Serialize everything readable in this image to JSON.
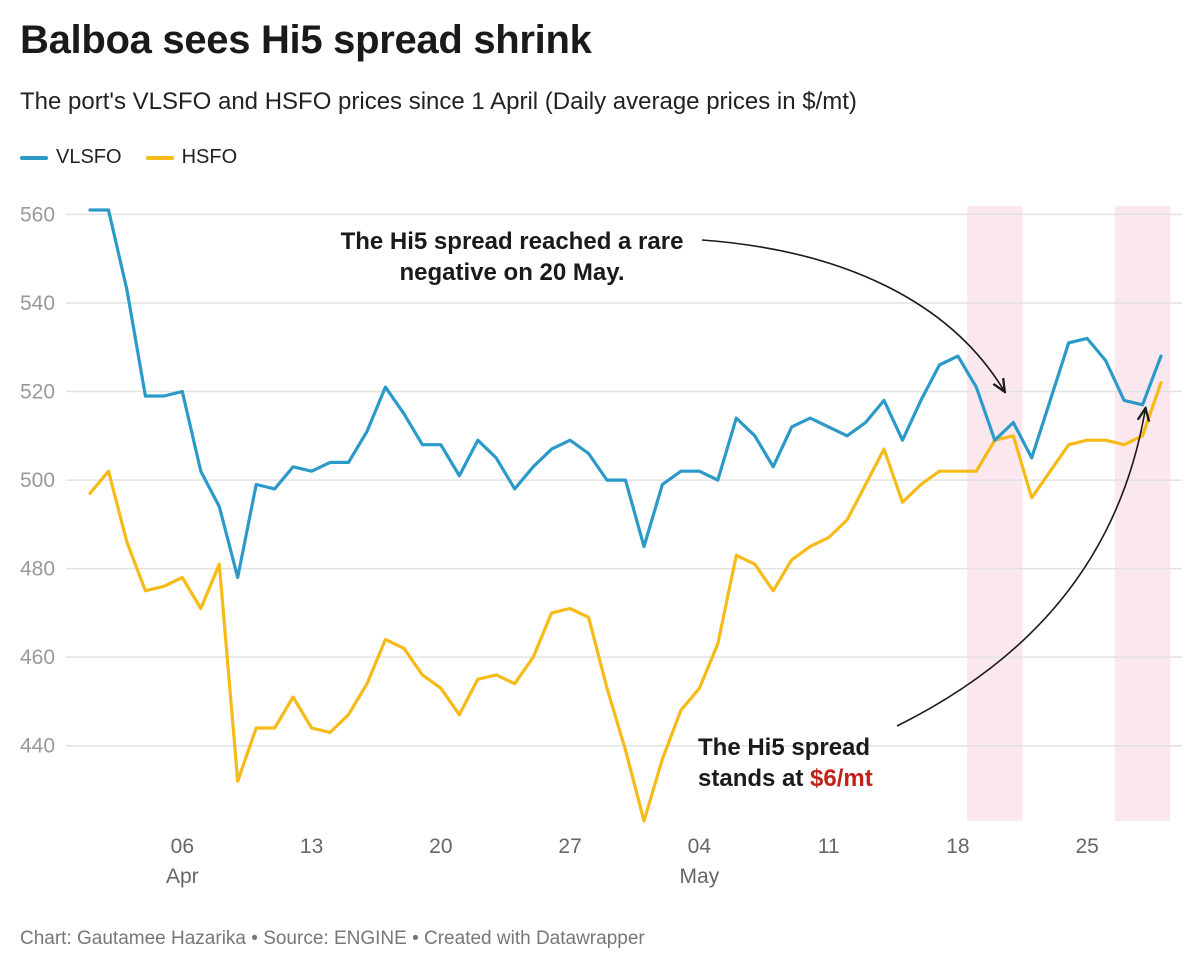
{
  "title": "Balboa sees Hi5 spread shrink",
  "subtitle": "The port's VLSFO and HSFO prices since 1 April (Daily average prices in $/mt)",
  "footer": "Chart: Gautamee Hazarika • Source: ENGINE • Created with Datawrapper",
  "colors": {
    "vlsfo": "#2b9ac8",
    "hsfo": "#f6bb19",
    "highlight": "#fbe8ee",
    "accent": "#c0221c"
  },
  "chart_data": {
    "type": "line",
    "title": "Balboa sees Hi5 spread shrink",
    "subtitle": "The port's VLSFO and HSFO prices since 1 April (Daily average prices in $/mt)",
    "xlabel": "",
    "ylabel": "",
    "x": [
      "2024-04-01",
      "2024-04-02",
      "2024-04-03",
      "2024-04-04",
      "2024-04-05",
      "2024-04-06",
      "2024-04-07",
      "2024-04-08",
      "2024-04-09",
      "2024-04-10",
      "2024-04-11",
      "2024-04-12",
      "2024-04-13",
      "2024-04-14",
      "2024-04-15",
      "2024-04-16",
      "2024-04-17",
      "2024-04-18",
      "2024-04-19",
      "2024-04-20",
      "2024-04-21",
      "2024-04-22",
      "2024-04-23",
      "2024-04-24",
      "2024-04-25",
      "2024-04-26",
      "2024-04-27",
      "2024-04-28",
      "2024-04-29",
      "2024-04-30",
      "2024-05-01",
      "2024-05-02",
      "2024-05-03",
      "2024-05-04",
      "2024-05-05",
      "2024-05-06",
      "2024-05-07",
      "2024-05-08",
      "2024-05-09",
      "2024-05-10",
      "2024-05-11",
      "2024-05-12",
      "2024-05-13",
      "2024-05-14",
      "2024-05-15",
      "2024-05-16",
      "2024-05-17",
      "2024-05-18",
      "2024-05-19",
      "2024-05-20",
      "2024-05-21",
      "2024-05-22",
      "2024-05-23",
      "2024-05-24",
      "2024-05-25",
      "2024-05-26",
      "2024-05-27",
      "2024-05-28",
      "2024-05-29"
    ],
    "series": [
      {
        "name": "VLSFO",
        "color": "#2b9ac8",
        "values": [
          561,
          561,
          543,
          519,
          519,
          520,
          502,
          494,
          478,
          499,
          498,
          503,
          502,
          504,
          504,
          511,
          521,
          515,
          508,
          508,
          501,
          509,
          505,
          498,
          503,
          507,
          509,
          506,
          500,
          500,
          485,
          499,
          502,
          502,
          500,
          514,
          510,
          503,
          512,
          514,
          512,
          510,
          513,
          518,
          509,
          518,
          526,
          528,
          521,
          509,
          513,
          505,
          518,
          531,
          532,
          527,
          518,
          517,
          528
        ]
      },
      {
        "name": "HSFO",
        "color": "#f6bb19",
        "values": [
          497,
          502,
          486,
          475,
          476,
          478,
          471,
          481,
          432,
          444,
          444,
          451,
          444,
          443,
          447,
          454,
          464,
          462,
          456,
          453,
          447,
          455,
          456,
          454,
          460,
          470,
          471,
          469,
          453,
          439,
          423,
          437,
          448,
          453,
          463,
          483,
          481,
          475,
          482,
          485,
          487,
          491,
          499,
          507,
          495,
          499,
          502,
          502,
          502,
          509,
          510,
          496,
          502,
          508,
          509,
          509,
          508,
          510,
          522
        ]
      }
    ],
    "ylim": [
      423,
      561
    ],
    "yticks": [
      440,
      460,
      480,
      500,
      520,
      540,
      560
    ],
    "xticks": [
      {
        "date": "2024-04-06",
        "label": "06",
        "sublabel": "Apr"
      },
      {
        "date": "2024-04-13",
        "label": "13",
        "sublabel": ""
      },
      {
        "date": "2024-04-20",
        "label": "20",
        "sublabel": ""
      },
      {
        "date": "2024-04-27",
        "label": "27",
        "sublabel": ""
      },
      {
        "date": "2024-05-04",
        "label": "04",
        "sublabel": "May"
      },
      {
        "date": "2024-05-11",
        "label": "11",
        "sublabel": ""
      },
      {
        "date": "2024-05-18",
        "label": "18",
        "sublabel": ""
      },
      {
        "date": "2024-05-25",
        "label": "25",
        "sublabel": ""
      }
    ],
    "highlights": [
      {
        "from": "2024-05-19",
        "to": "2024-05-21"
      },
      {
        "from": "2024-05-27",
        "to": "2024-05-29"
      }
    ],
    "grid": true,
    "legend": "top-left",
    "annotations": [
      {
        "lines": [
          "The Hi5 spread reached a rare",
          "negative on 20 May."
        ],
        "target_date": "2024-05-20"
      },
      {
        "lines": [
          "The Hi5 spread",
          "stands at "
        ],
        "highlight": "$6/mt",
        "target_date": "2024-05-28"
      }
    ]
  }
}
